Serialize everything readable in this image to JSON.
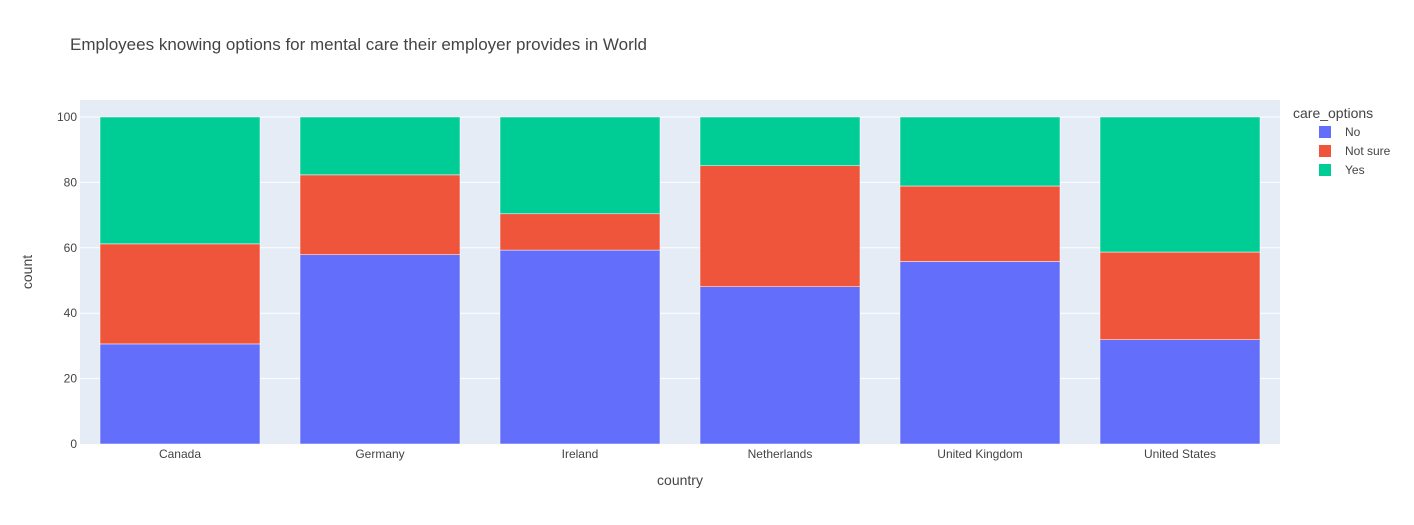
{
  "chart_data": {
    "type": "bar",
    "barmode": "stack",
    "title": "Employees knowing options for mental care their employer provides in World",
    "xlabel": "country",
    "ylabel": "count",
    "ylim": [
      0,
      100
    ],
    "yticks": [
      0,
      20,
      40,
      60,
      80,
      100
    ],
    "grid": true,
    "legend_title": "care_options",
    "legend_position": "top-right",
    "categories": [
      "Canada",
      "Germany",
      "Ireland",
      "Netherlands",
      "United Kingdom",
      "United States"
    ],
    "series": [
      {
        "name": "No",
        "color": "#636efa",
        "values": [
          30.6,
          57.9,
          59.3,
          48.1,
          55.8,
          31.9
        ]
      },
      {
        "name": "Not sure",
        "color": "#ef553b",
        "values": [
          30.6,
          24.4,
          11.1,
          37.0,
          23.1,
          26.8
        ]
      },
      {
        "name": "Yes",
        "color": "#00cc96",
        "values": [
          38.8,
          17.7,
          29.6,
          14.9,
          21.1,
          41.3
        ]
      }
    ]
  }
}
